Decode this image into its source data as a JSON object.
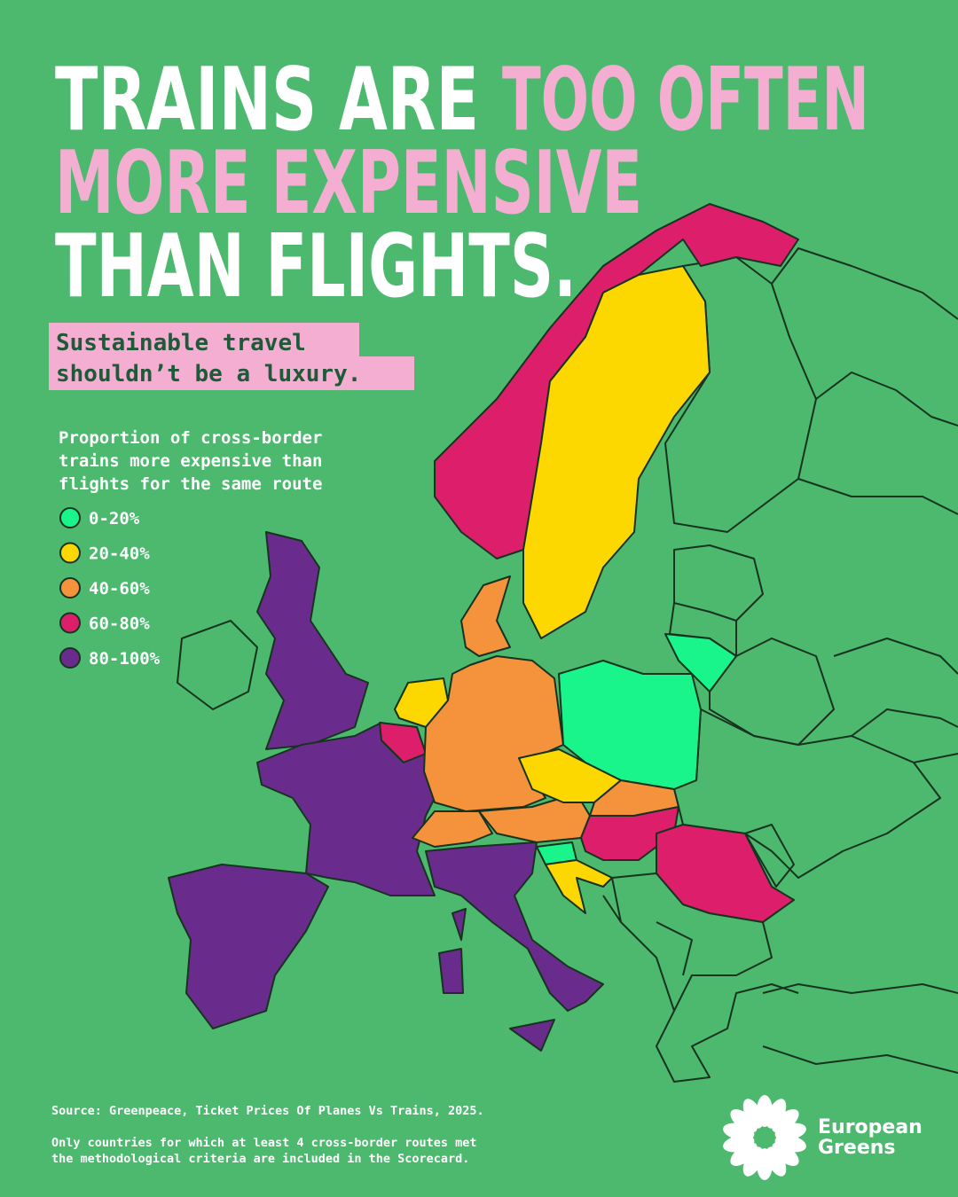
{
  "title": {
    "line1_white": "TRAINS ARE",
    "line1_pink": "TOO OFTEN",
    "line2": "MORE EXPENSIVE",
    "line3": "THAN FLIGHTS."
  },
  "subtitle": [
    "Sustainable travel",
    "shouldn’t be a luxury."
  ],
  "legend": {
    "title": [
      "Proportion of cross-border",
      "trains more expensive than",
      "flights for the same route"
    ],
    "items": [
      {
        "label": "0-20%",
        "color": "#19f58b"
      },
      {
        "label": "20-40%",
        "color": "#fcd800"
      },
      {
        "label": "40-60%",
        "color": "#f5923c"
      },
      {
        "label": "60-80%",
        "color": "#dd1e6b"
      },
      {
        "label": "80-100%",
        "color": "#6a2c8c"
      }
    ]
  },
  "map": {
    "region_bins": [
      4,
      4,
      4,
      4,
      3,
      1,
      2,
      2,
      2,
      2,
      1,
      2,
      0,
      0,
      3,
      3,
      0,
      1,
      3,
      1
    ]
  },
  "footer": {
    "source": "Source: Greenpeace, Ticket Prices Of Planes Vs Trains, 2025.",
    "note": [
      "Only countries for which at least 4 cross-border routes met",
      "the methodological criteria are included in the Scorecard."
    ]
  },
  "logo": {
    "text": [
      "European",
      "Greens"
    ]
  }
}
